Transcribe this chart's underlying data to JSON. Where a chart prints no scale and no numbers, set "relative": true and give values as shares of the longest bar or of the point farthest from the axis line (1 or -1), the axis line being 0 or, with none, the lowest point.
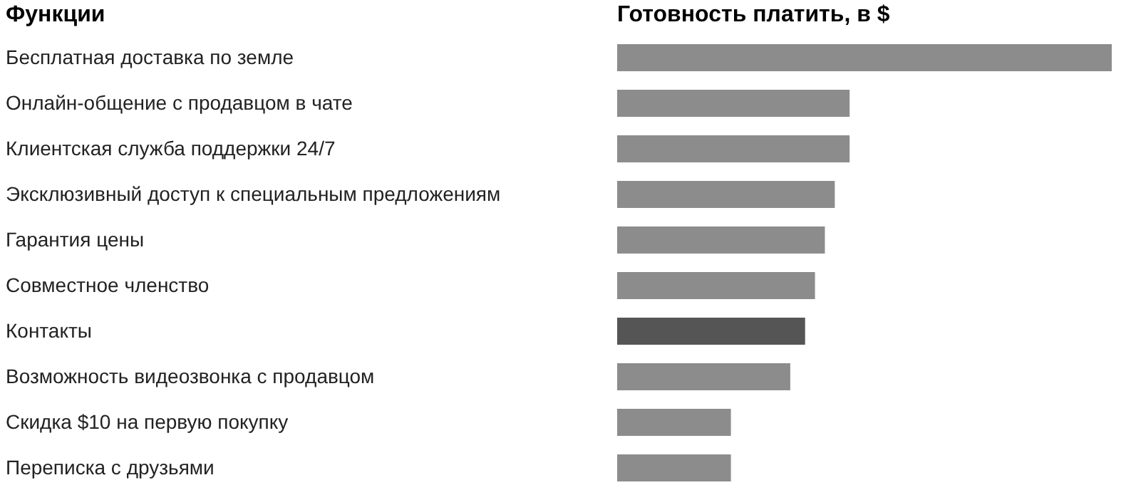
{
  "chart_data": {
    "type": "bar",
    "orientation": "horizontal",
    "relative": true,
    "ylabel": "Функции",
    "xlabel": "Готовность платить, в $",
    "categories": [
      "Бесплатная доставка по земле",
      "Онлайн-общение с продавцом в чате",
      "Клиентская служба поддержки 24/7",
      "Эксклюзивный доступ к специальным предложениям",
      "Гарантия цены",
      "Совместное членство",
      "Контакты",
      "Возможность видеозвонка с продавцом",
      "Скидка $10 на первую покупку",
      "Переписка с друзьями"
    ],
    "values": [
      1,
      0.47,
      0.47,
      0.44,
      0.42,
      0.4,
      0.38,
      0.35,
      0.23,
      0.23
    ],
    "colors": [
      "#8c8c8c",
      "#8c8c8c",
      "#8c8c8c",
      "#8c8c8c",
      "#8c8c8c",
      "#8c8c8c",
      "#555555",
      "#8c8c8c",
      "#8c8c8c",
      "#8c8c8c"
    ],
    "legend": false
  }
}
